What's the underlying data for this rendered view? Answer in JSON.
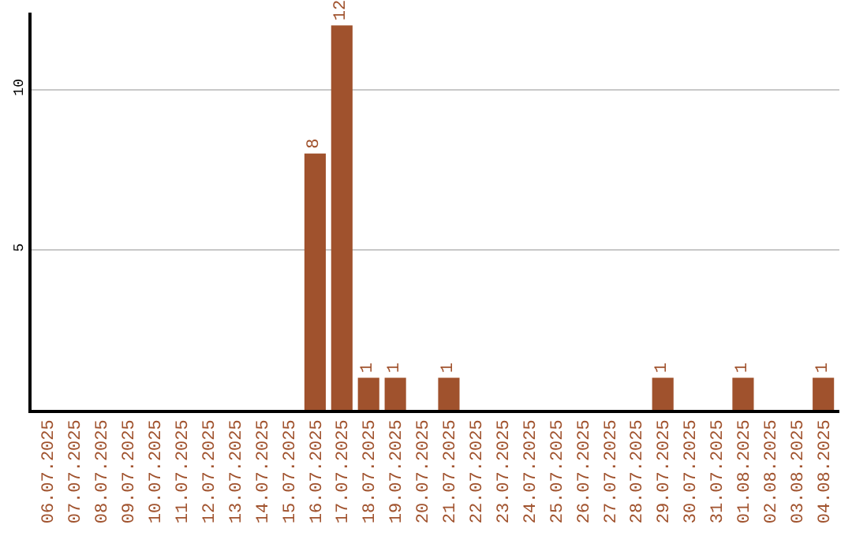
{
  "chart_data": {
    "type": "bar",
    "categories": [
      "06.07.2025",
      "07.07.2025",
      "08.07.2025",
      "09.07.2025",
      "10.07.2025",
      "11.07.2025",
      "12.07.2025",
      "13.07.2025",
      "14.07.2025",
      "15.07.2025",
      "16.07.2025",
      "17.07.2025",
      "18.07.2025",
      "19.07.2025",
      "20.07.2025",
      "21.07.2025",
      "22.07.2025",
      "23.07.2025",
      "24.07.2025",
      "25.07.2025",
      "26.07.2025",
      "27.07.2025",
      "28.07.2025",
      "29.07.2025",
      "30.07.2025",
      "31.07.2025",
      "01.08.2025",
      "02.08.2025",
      "03.08.2025",
      "04.08.2025"
    ],
    "values": [
      0,
      0,
      0,
      0,
      0,
      0,
      0,
      0,
      0,
      0,
      8,
      12,
      1,
      1,
      0,
      1,
      0,
      0,
      0,
      0,
      0,
      0,
      0,
      1,
      0,
      0,
      1,
      0,
      0,
      1
    ],
    "value_labels": [
      null,
      null,
      null,
      null,
      null,
      null,
      null,
      null,
      null,
      null,
      "8",
      "12",
      "1",
      "1",
      null,
      "1",
      null,
      null,
      null,
      null,
      null,
      null,
      null,
      "1",
      null,
      null,
      "1",
      null,
      null,
      "1"
    ],
    "color": "#a0522d",
    "ylim": [
      0,
      12.4
    ],
    "yticks": [
      5,
      10
    ],
    "grid": "y"
  }
}
